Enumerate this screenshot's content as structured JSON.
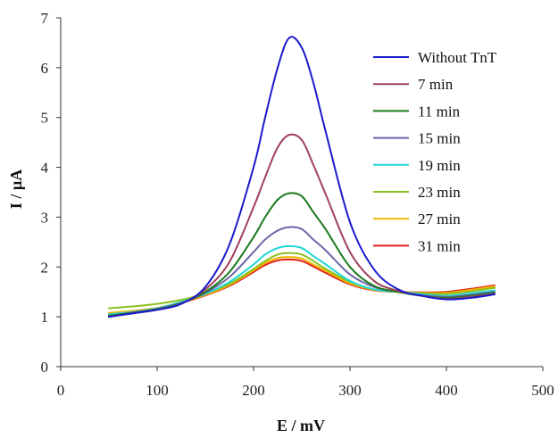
{
  "chart_data": {
    "type": "line",
    "title": "",
    "xlabel": "E / mV",
    "ylabel": "I / µA",
    "xlim": [
      0,
      500
    ],
    "ylim": [
      0,
      7
    ],
    "xticks": [
      0,
      100,
      200,
      300,
      400,
      500
    ],
    "yticks": [
      0,
      1,
      2,
      3,
      4,
      5,
      6,
      7
    ],
    "grid": false,
    "legend_position": "top-right",
    "x": [
      50,
      75,
      100,
      125,
      150,
      175,
      200,
      212,
      225,
      237,
      250,
      262,
      275,
      300,
      325,
      350,
      375,
      400,
      425,
      450
    ],
    "series": [
      {
        "name": "Without TnT",
        "color": "#1a1acd",
        "values": [
          1.0,
          1.07,
          1.14,
          1.26,
          1.6,
          2.45,
          4.0,
          5.0,
          6.0,
          6.6,
          6.4,
          5.7,
          4.7,
          2.9,
          1.95,
          1.55,
          1.42,
          1.35,
          1.38,
          1.45
        ]
      },
      {
        "name": "7 min",
        "color": "#a0405a",
        "values": [
          1.0,
          1.07,
          1.14,
          1.26,
          1.55,
          2.1,
          3.2,
          3.8,
          4.4,
          4.65,
          4.55,
          4.05,
          3.45,
          2.3,
          1.72,
          1.52,
          1.42,
          1.36,
          1.4,
          1.46
        ]
      },
      {
        "name": "11 min",
        "color": "#1c7a1c",
        "values": [
          1.02,
          1.08,
          1.15,
          1.27,
          1.5,
          1.9,
          2.6,
          3.0,
          3.35,
          3.48,
          3.42,
          3.1,
          2.75,
          2.0,
          1.62,
          1.5,
          1.42,
          1.38,
          1.42,
          1.48
        ]
      },
      {
        "name": "15 min",
        "color": "#6a65a8",
        "values": [
          1.02,
          1.09,
          1.16,
          1.28,
          1.48,
          1.8,
          2.3,
          2.55,
          2.73,
          2.8,
          2.76,
          2.55,
          2.33,
          1.85,
          1.6,
          1.5,
          1.43,
          1.4,
          1.44,
          1.5
        ]
      },
      {
        "name": "19 min",
        "color": "#22d6d6",
        "values": [
          1.05,
          1.1,
          1.17,
          1.3,
          1.46,
          1.7,
          2.05,
          2.25,
          2.38,
          2.42,
          2.38,
          2.22,
          2.05,
          1.72,
          1.55,
          1.5,
          1.45,
          1.42,
          1.47,
          1.53
        ]
      },
      {
        "name": "23 min",
        "color": "#8cc01e",
        "values": [
          1.17,
          1.21,
          1.26,
          1.34,
          1.47,
          1.66,
          1.96,
          2.12,
          2.25,
          2.28,
          2.25,
          2.12,
          1.96,
          1.7,
          1.55,
          1.5,
          1.47,
          1.46,
          1.51,
          1.58
        ]
      },
      {
        "name": "27 min",
        "color": "#f0b800",
        "values": [
          1.08,
          1.12,
          1.18,
          1.29,
          1.44,
          1.64,
          1.93,
          2.08,
          2.18,
          2.2,
          2.17,
          2.05,
          1.92,
          1.67,
          1.54,
          1.5,
          1.48,
          1.48,
          1.54,
          1.61
        ]
      },
      {
        "name": "31 min",
        "color": "#e3221a",
        "values": [
          1.07,
          1.11,
          1.17,
          1.28,
          1.43,
          1.62,
          1.9,
          2.04,
          2.13,
          2.15,
          2.12,
          2.01,
          1.88,
          1.65,
          1.53,
          1.5,
          1.49,
          1.5,
          1.56,
          1.63
        ]
      }
    ]
  }
}
